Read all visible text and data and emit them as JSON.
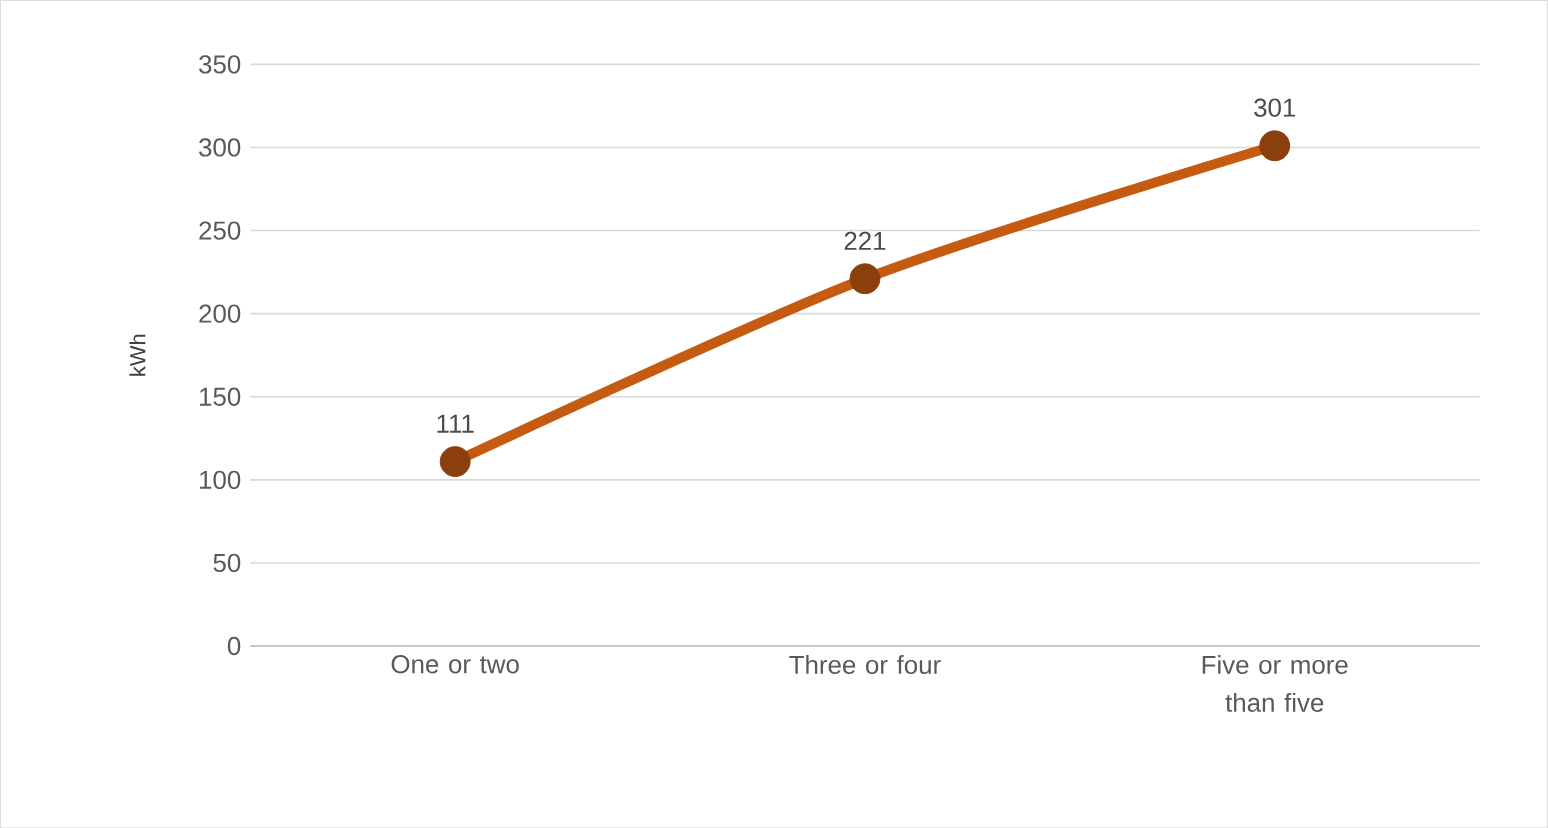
{
  "chart_data": {
    "type": "line",
    "ylabel": "kWh",
    "categories": [
      "One or two",
      "Three or four",
      "Five or more than five"
    ],
    "series": [
      {
        "color": "#c55a11",
        "values": [
          111,
          221,
          301
        ]
      }
    ],
    "ylim": [
      0,
      350
    ],
    "yticks": [
      0,
      50,
      100,
      150,
      200,
      250,
      300,
      350
    ],
    "grid": "y",
    "marker": "circle",
    "data_labels": true
  }
}
